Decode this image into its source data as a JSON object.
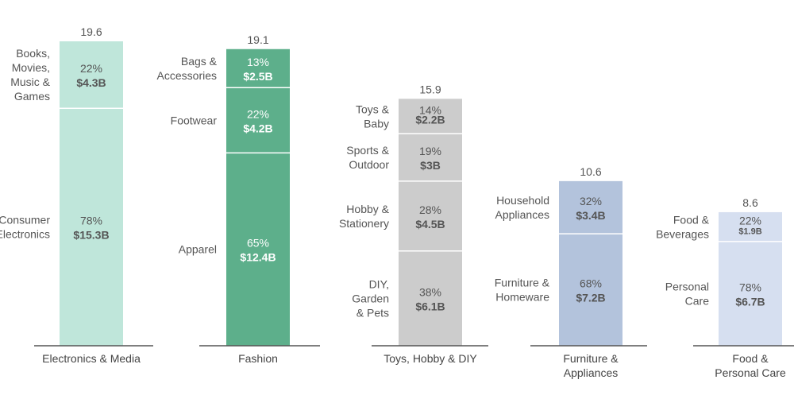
{
  "chart_data": {
    "type": "bar",
    "subtype": "stacked-100",
    "unit_note": "",
    "ylim": [
      0,
      19.6
    ],
    "grid": false,
    "legend": "none",
    "categories": [
      {
        "name": "Electronics & Media",
        "name_lines": [
          "Electronics & Media"
        ],
        "total": "19.6",
        "color": "#bfe6da",
        "text_color": "#555555",
        "segments": [
          {
            "label_lines": [
              "Books,",
              "Movies,",
              "Music &",
              "Games"
            ],
            "pct": "22%",
            "pct_value": 22,
            "amount": "$4.3B"
          },
          {
            "label_lines": [
              "Consumer",
              "Electronics"
            ],
            "pct": "78%",
            "pct_value": 78,
            "amount": "$15.3B"
          }
        ]
      },
      {
        "name": "Fashion",
        "name_lines": [
          "Fashion"
        ],
        "total": "19.1",
        "color": "#5daf8b",
        "text_color": "#ffffff",
        "segments": [
          {
            "label_lines": [
              "Bags &",
              "Accessories"
            ],
            "pct": "13%",
            "pct_value": 13,
            "amount": "$2.5B"
          },
          {
            "label_lines": [
              "Footwear"
            ],
            "pct": "22%",
            "pct_value": 22,
            "amount": "$4.2B"
          },
          {
            "label_lines": [
              "Apparel"
            ],
            "pct": "65%",
            "pct_value": 65,
            "amount": "$12.4B"
          }
        ]
      },
      {
        "name": "Toys, Hobby & DIY",
        "name_lines": [
          "Toys, Hobby & DIY"
        ],
        "total": "15.9",
        "color": "#cccccc",
        "text_color": "#555555",
        "segments": [
          {
            "label_lines": [
              "Toys &",
              "Baby"
            ],
            "pct": "14%",
            "pct_value": 14,
            "amount": "$2.2B"
          },
          {
            "label_lines": [
              "Sports &",
              "Outdoor"
            ],
            "pct": "19%",
            "pct_value": 19,
            "amount": "$3B"
          },
          {
            "label_lines": [
              "Hobby &",
              "Stationery"
            ],
            "pct": "28%",
            "pct_value": 28,
            "amount": "$4.5B"
          },
          {
            "label_lines": [
              "DIY,",
              "Garden",
              "& Pets"
            ],
            "pct": "38%",
            "pct_value": 38,
            "amount": "$6.1B"
          }
        ]
      },
      {
        "name": "Furniture & Appliances",
        "name_lines": [
          "Furniture &",
          "Appliances"
        ],
        "total": "10.6",
        "color": "#b3c3dc",
        "text_color": "#555555",
        "segments": [
          {
            "label_lines": [
              "Household",
              "Appliances"
            ],
            "pct": "32%",
            "pct_value": 32,
            "amount": "$3.4B"
          },
          {
            "label_lines": [
              "Furniture &",
              "Homeware"
            ],
            "pct": "68%",
            "pct_value": 68,
            "amount": "$7.2B"
          }
        ]
      },
      {
        "name": "Food & Personal Care",
        "name_lines": [
          "Food &",
          "Personal Care"
        ],
        "total": "8.6",
        "color": "#d6dff0",
        "text_color": "#555555",
        "segments": [
          {
            "label_lines": [
              "Food &",
              "Beverages"
            ],
            "pct": "22%",
            "pct_value": 22,
            "amount": "$1.9B"
          },
          {
            "label_lines": [
              "Personal",
              "Care"
            ],
            "pct": "78%",
            "pct_value": 78,
            "amount": "$6.7B"
          }
        ]
      }
    ]
  }
}
